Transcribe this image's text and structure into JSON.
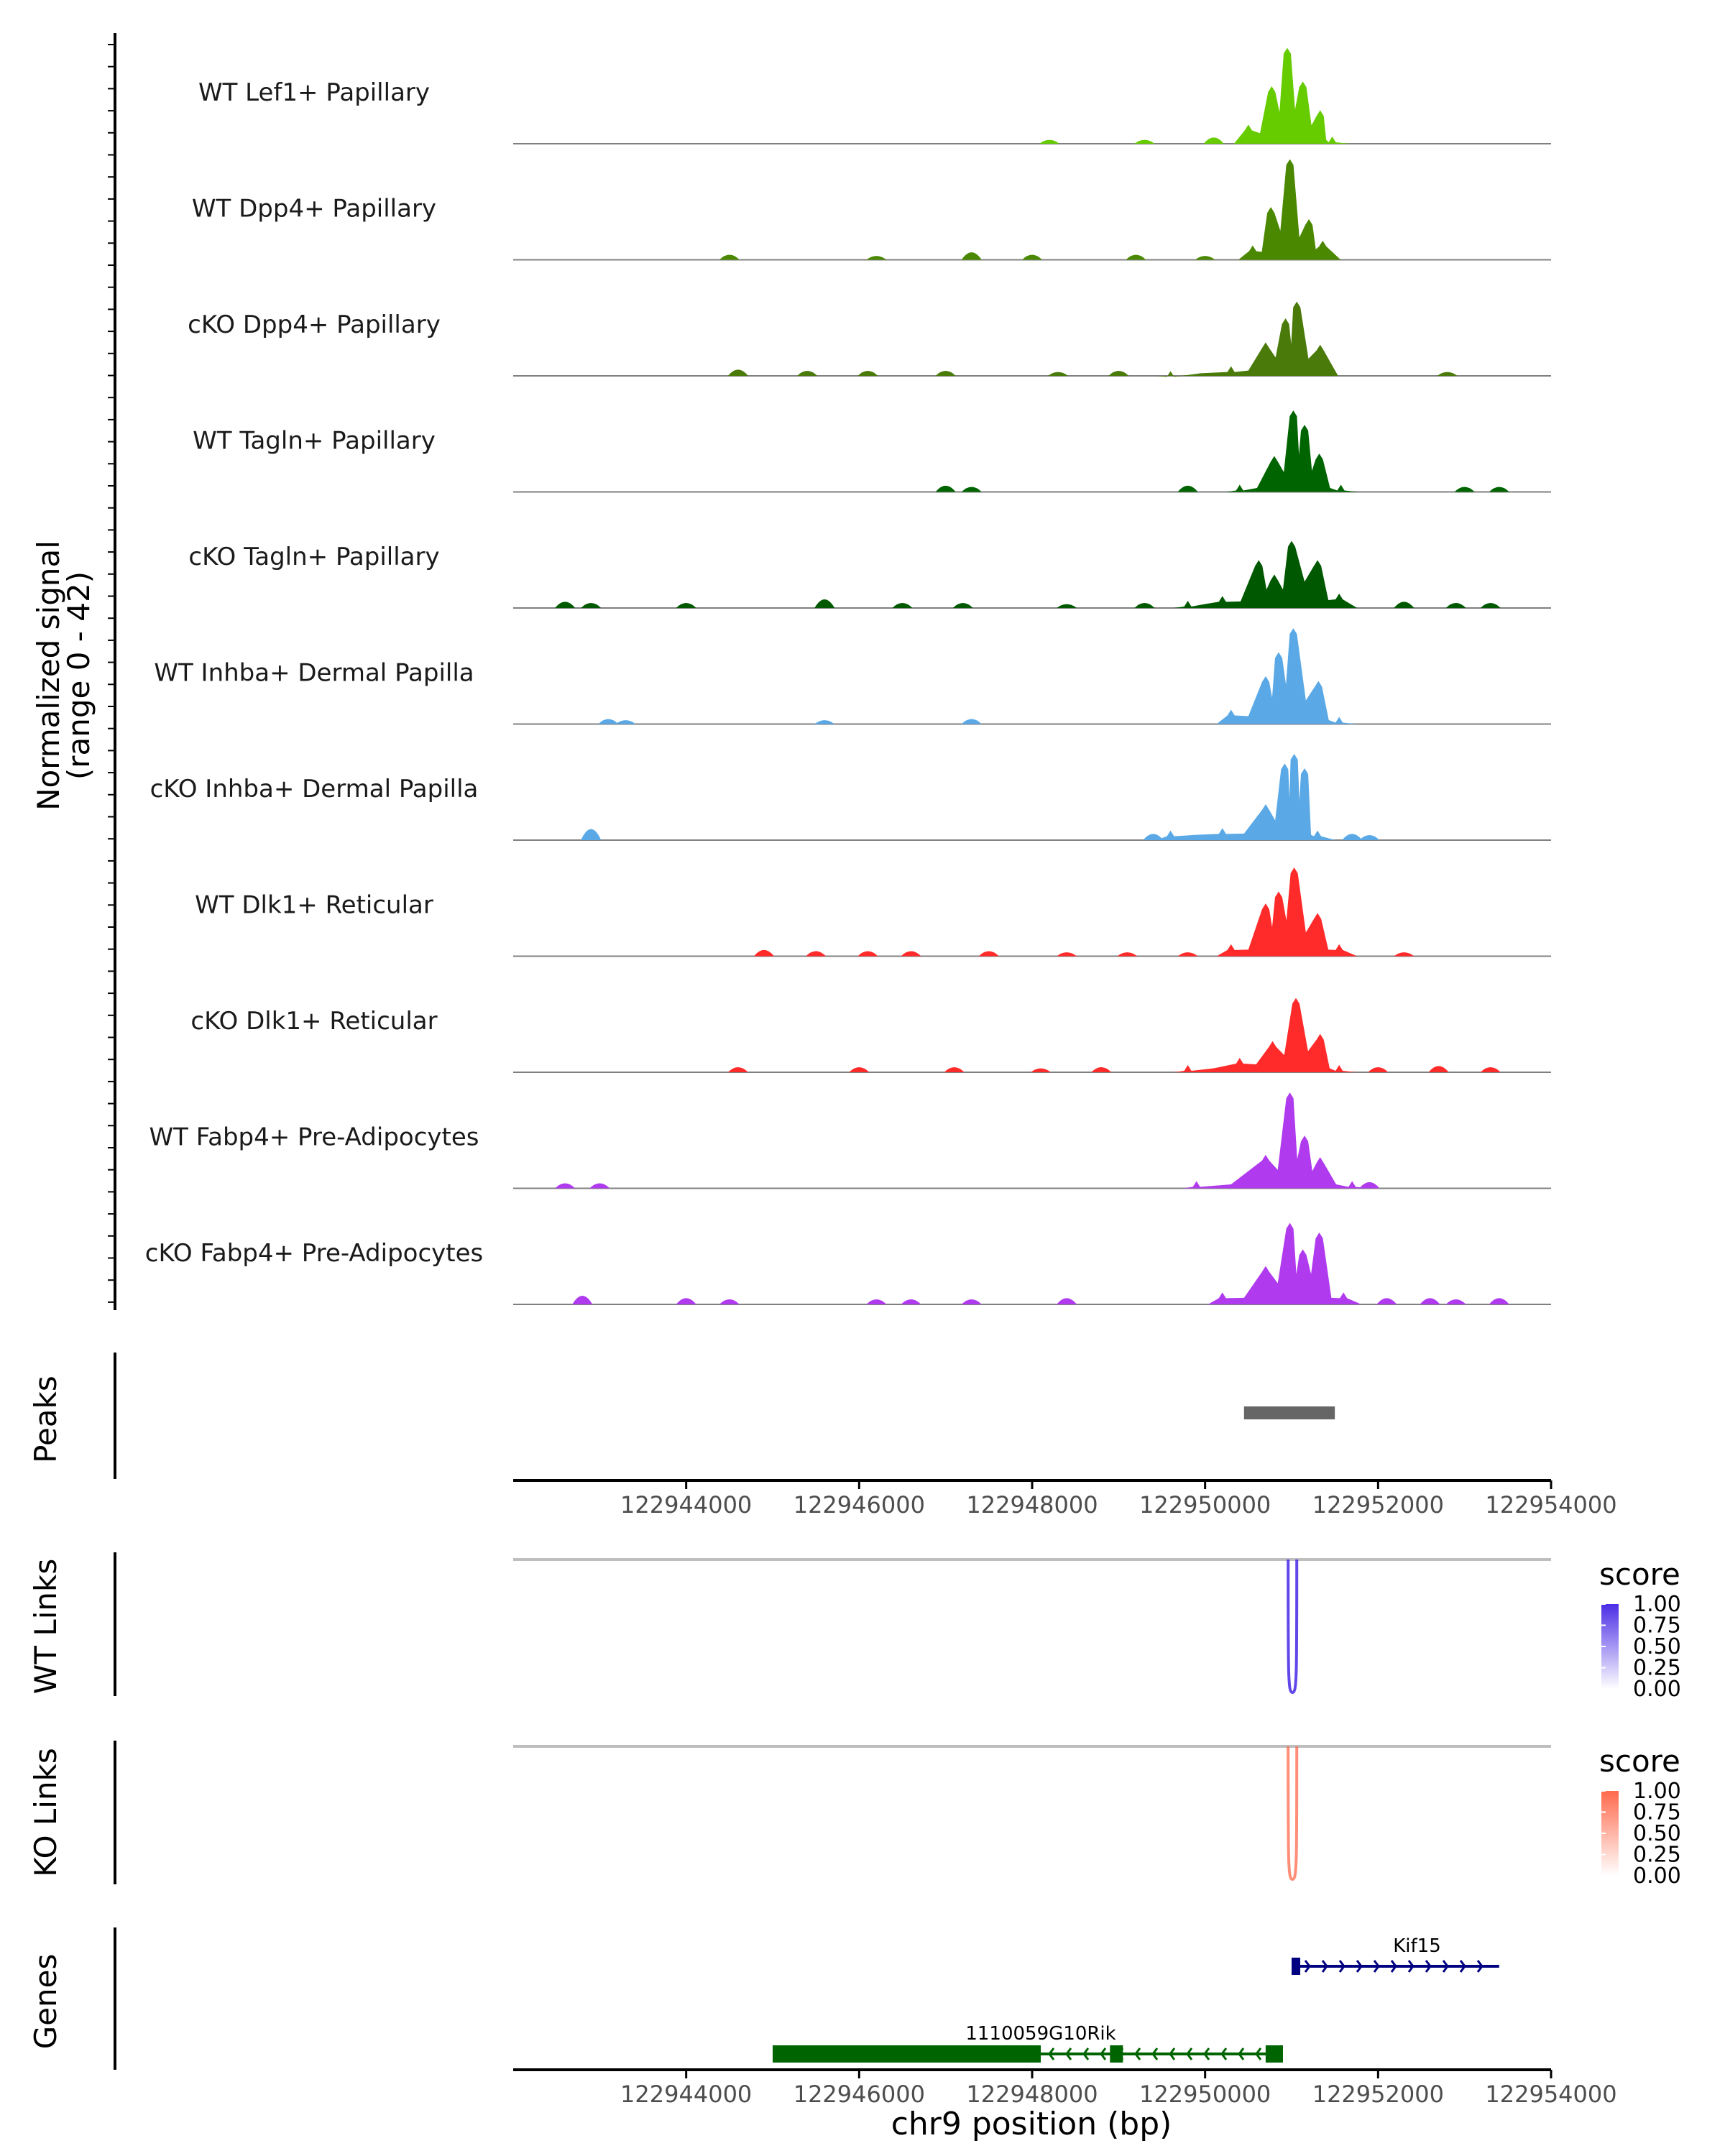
{
  "chart_data": {
    "type": "area",
    "figure": "coverage tracks",
    "region": {
      "chrom": "chr9",
      "start": 122942000,
      "end": 122954000
    },
    "signal_axis": {
      "label_line1": "Normalized signal",
      "label_line2": "(range 0 - 42)",
      "range": [
        0,
        42
      ]
    },
    "x_axis": {
      "title": "chr9 position (bp)",
      "ticks": [
        122944000,
        122946000,
        122948000,
        122950000,
        122952000,
        122954000
      ]
    },
    "series": [
      {
        "name": "WT Lef1+ Papillary",
        "color": "#66cc00",
        "main": [
          [
            122950500,
            8
          ],
          [
            122950770,
            24
          ],
          [
            122950950,
            40
          ],
          [
            122951130,
            26
          ],
          [
            122951330,
            14
          ],
          [
            122951470,
            3
          ]
        ],
        "background": [
          [
            122948200,
            1
          ],
          [
            122949300,
            1
          ],
          [
            122950100,
            2
          ]
        ]
      },
      {
        "name": "WT Dpp4+ Papillary",
        "color": "#4a8800",
        "main": [
          [
            122950550,
            6
          ],
          [
            122950760,
            22
          ],
          [
            122950980,
            42
          ],
          [
            122951200,
            17
          ],
          [
            122951360,
            8
          ]
        ],
        "background": [
          [
            122944500,
            1.5
          ],
          [
            122946200,
            1
          ],
          [
            122947300,
            2.5
          ],
          [
            122948000,
            1.5
          ],
          [
            122949200,
            1.5
          ],
          [
            122950000,
            1
          ]
        ]
      },
      {
        "name": "cKO Dpp4+ Papillary",
        "color": "#4a7a0a",
        "main": [
          [
            122949600,
            2
          ],
          [
            122950300,
            4
          ],
          [
            122950700,
            14
          ],
          [
            122950930,
            24
          ],
          [
            122951060,
            31
          ],
          [
            122951330,
            13
          ]
        ],
        "background": [
          [
            122944600,
            2
          ],
          [
            122945400,
            1.5
          ],
          [
            122946100,
            1.5
          ],
          [
            122947000,
            1.5
          ],
          [
            122948300,
            1
          ],
          [
            122949000,
            1.5
          ],
          [
            122952800,
            1
          ]
        ]
      },
      {
        "name": "WT Tagln+ Papillary",
        "color": "#006400",
        "main": [
          [
            122950400,
            3
          ],
          [
            122950800,
            15
          ],
          [
            122951020,
            34
          ],
          [
            122951150,
            28
          ],
          [
            122951320,
            16
          ],
          [
            122951570,
            3
          ]
        ],
        "background": [
          [
            122947000,
            2
          ],
          [
            122947300,
            1.5
          ],
          [
            122949800,
            2
          ],
          [
            122953000,
            1.5
          ],
          [
            122953400,
            1.5
          ]
        ]
      },
      {
        "name": "cKO Tagln+ Papillary",
        "color": "#005800",
        "main": [
          [
            122949800,
            3
          ],
          [
            122950200,
            5
          ],
          [
            122950620,
            20
          ],
          [
            122950800,
            14
          ],
          [
            122951000,
            28
          ],
          [
            122951300,
            20
          ],
          [
            122951550,
            6
          ]
        ],
        "background": [
          [
            122942600,
            2
          ],
          [
            122942900,
            1.5
          ],
          [
            122944000,
            1.5
          ],
          [
            122945600,
            3
          ],
          [
            122946500,
            1.5
          ],
          [
            122947200,
            1.5
          ],
          [
            122948400,
            1
          ],
          [
            122949300,
            1.5
          ],
          [
            122952300,
            2
          ],
          [
            122952900,
            1.5
          ],
          [
            122953300,
            1.5
          ]
        ]
      },
      {
        "name": "WT Inhba+ Dermal Papilla",
        "color": "#5aa9e6",
        "main": [
          [
            122950300,
            6
          ],
          [
            122950700,
            20
          ],
          [
            122950850,
            30
          ],
          [
            122951020,
            40
          ],
          [
            122951310,
            18
          ],
          [
            122951550,
            3
          ]
        ],
        "background": [
          [
            122943100,
            1.5
          ],
          [
            122943300,
            1
          ],
          [
            122945600,
            1
          ],
          [
            122947300,
            1.5
          ]
        ]
      },
      {
        "name": "cKO Inhba+ Dermal Papilla",
        "color": "#5aa9e6",
        "main": [
          [
            122949600,
            4
          ],
          [
            122950200,
            5
          ],
          [
            122950700,
            15
          ],
          [
            122950920,
            32
          ],
          [
            122951030,
            36
          ],
          [
            122951150,
            30
          ],
          [
            122951300,
            4
          ]
        ],
        "background": [
          [
            122942900,
            4
          ],
          [
            122949400,
            2
          ],
          [
            122951700,
            2
          ],
          [
            122951900,
            1.5
          ]
        ]
      },
      {
        "name": "WT Dlk1+ Reticular",
        "color": "#ff2a2a",
        "main": [
          [
            122950300,
            5
          ],
          [
            122950700,
            22
          ],
          [
            122950850,
            27
          ],
          [
            122951030,
            37
          ],
          [
            122951300,
            18
          ],
          [
            122951550,
            5
          ]
        ],
        "background": [
          [
            122944900,
            2
          ],
          [
            122945500,
            1.5
          ],
          [
            122946100,
            1.5
          ],
          [
            122946600,
            1.5
          ],
          [
            122947500,
            1.5
          ],
          [
            122948400,
            1
          ],
          [
            122949100,
            1
          ],
          [
            122949800,
            1
          ],
          [
            122952300,
            1
          ]
        ]
      },
      {
        "name": "cKO Dlk1+ Reticular",
        "color": "#ff2a2a",
        "main": [
          [
            122949800,
            3
          ],
          [
            122950400,
            6
          ],
          [
            122950780,
            13
          ],
          [
            122951050,
            31
          ],
          [
            122951330,
            16
          ],
          [
            122951550,
            3
          ]
        ],
        "background": [
          [
            122944600,
            1.5
          ],
          [
            122946000,
            1.5
          ],
          [
            122947100,
            1.5
          ],
          [
            122948100,
            1
          ],
          [
            122948800,
            1.5
          ],
          [
            122952000,
            1.5
          ],
          [
            122952700,
            2
          ],
          [
            122953300,
            1.5
          ]
        ]
      },
      {
        "name": "WT Fabp4+ Pre-Adipocytes",
        "color": "#b03aee",
        "main": [
          [
            122949900,
            3
          ],
          [
            122950700,
            14
          ],
          [
            122950980,
            40
          ],
          [
            122951150,
            22
          ],
          [
            122951330,
            13
          ],
          [
            122951700,
            3
          ]
        ],
        "background": [
          [
            122942600,
            1.5
          ],
          [
            122943000,
            1.5
          ],
          [
            122950500,
            3
          ],
          [
            122951900,
            2
          ]
        ]
      },
      {
        "name": "cKO Fabp4+ Pre-Adipocytes",
        "color": "#b03aee",
        "main": [
          [
            122950200,
            5
          ],
          [
            122950700,
            16
          ],
          [
            122950980,
            34
          ],
          [
            122951130,
            23
          ],
          [
            122951320,
            30
          ],
          [
            122951600,
            5
          ]
        ],
        "background": [
          [
            122942800,
            3
          ],
          [
            122944000,
            2
          ],
          [
            122944500,
            1.5
          ],
          [
            122946200,
            1.5
          ],
          [
            122946600,
            1.5
          ],
          [
            122947300,
            1.5
          ],
          [
            122948400,
            2
          ],
          [
            122952100,
            2
          ],
          [
            122952600,
            2
          ],
          [
            122952900,
            1.5
          ],
          [
            122953400,
            2
          ]
        ]
      }
    ],
    "peaks": {
      "label": "Peaks",
      "regions": [
        [
          122950450,
          122951500
        ]
      ],
      "color": "#666666"
    },
    "links": [
      {
        "label": "WT Links",
        "legend_title": "score",
        "color": "#4b2ee6",
        "arcs": [
          {
            "start": 122950960,
            "end": 122951060,
            "score": 0.8
          }
        ],
        "legend_values": [
          "1.00",
          "0.75",
          "0.50",
          "0.25",
          "0.00"
        ]
      },
      {
        "label": "KO Links",
        "legend_title": "score",
        "color": "#ff6a4d",
        "arcs": [
          {
            "start": 122950960,
            "end": 122951060,
            "score": 0.6
          }
        ],
        "legend_values": [
          "1.00",
          "0.75",
          "0.50",
          "0.25",
          "0.00"
        ]
      }
    ],
    "genes": {
      "label": "Genes",
      "items": [
        {
          "name": "Kif15",
          "start": 122951000,
          "end": 122953400,
          "strand": "+",
          "color": "#000080",
          "exons": [
            [
              122951000,
              122951100
            ]
          ]
        },
        {
          "name": "1110059G10Rik",
          "start": 122945000,
          "end": 122950900,
          "strand": "-",
          "color": "#006400",
          "exons": [
            [
              122945000,
              122948100
            ],
            [
              122948900,
              122949050
            ],
            [
              122950700,
              122950900
            ]
          ]
        }
      ]
    }
  }
}
